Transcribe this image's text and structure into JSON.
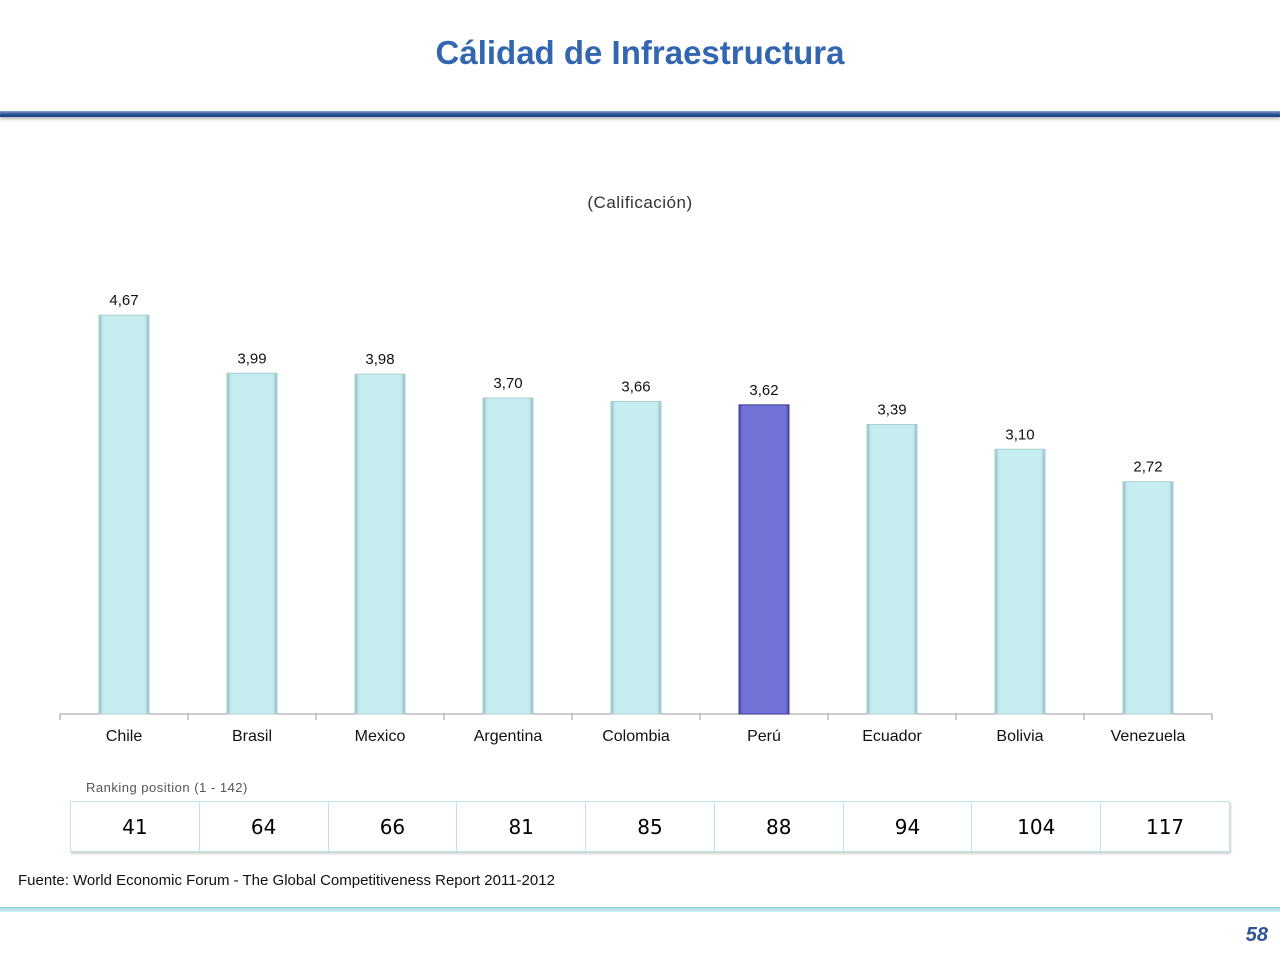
{
  "title": "Cálidad de Infraestructura",
  "subtitle": "(Calificación)",
  "ranking": {
    "label": "Ranking position (1 - 142)",
    "values": [
      "41",
      "64",
      "66",
      "81",
      "85",
      "88",
      "94",
      "104",
      "117"
    ]
  },
  "source": "Fuente: World Economic Forum - The Global Competitiveness Report 2011-2012",
  "page_number": "58",
  "colors": {
    "title": "#3366b0",
    "bar": "#c6edf0",
    "bar_highlight": "#7474d8"
  },
  "chart_data": {
    "type": "bar",
    "categories": [
      "Chile",
      "Brasil",
      "Mexico",
      "Argentina",
      "Colombia",
      "Perú",
      "Ecuador",
      "Bolivia",
      "Venezuela"
    ],
    "values": [
      4.67,
      3.99,
      3.98,
      3.7,
      3.66,
      3.62,
      3.39,
      3.1,
      2.72
    ],
    "value_labels": [
      "4,67",
      "3,99",
      "3,98",
      "3,70",
      "3,66",
      "3,62",
      "3,39",
      "3,10",
      "2,72"
    ],
    "highlight": "Perú",
    "title": "(Calificación)",
    "xlabel": "",
    "ylabel": "",
    "ylim": [
      0,
      5.3
    ],
    "grid": false,
    "legend": "none"
  }
}
